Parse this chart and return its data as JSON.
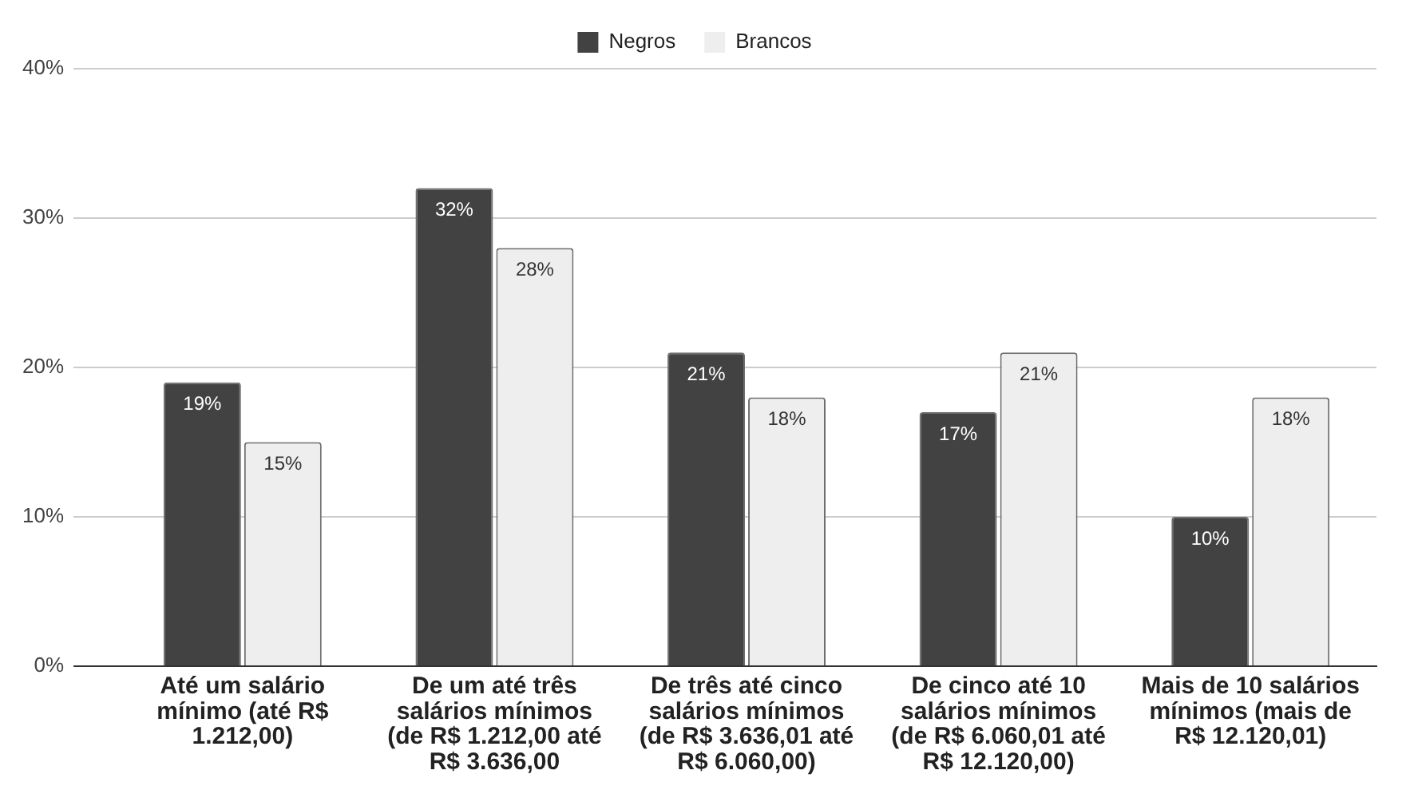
{
  "chart_data": {
    "type": "bar",
    "categories": [
      "Até um salário mínimo (até R$ 1.212,00)",
      "De um até três salários mínimos (de R$ 1.212,00 até R$ 3.636,00",
      "De três até cinco salários mínimos (de R$ 3.636,01 até R$ 6.060,00)",
      "De cinco até 10 salários mínimos (de R$ 6.060,01 até R$ 12.120,00)",
      "Mais de 10 salários mínimos (mais de R$ 12.120,01)"
    ],
    "series": [
      {
        "name": "Negros",
        "color": "#424242",
        "values": [
          19,
          32,
          21,
          17,
          10
        ],
        "value_labels": [
          "19%",
          "32%",
          "21%",
          "17%",
          "10%"
        ]
      },
      {
        "name": "Brancos",
        "color": "#eeeeee",
        "values": [
          15,
          28,
          18,
          21,
          18
        ],
        "value_labels": [
          "15%",
          "28%",
          "18%",
          "21%",
          "18%"
        ]
      }
    ],
    "ylim": [
      0,
      40
    ],
    "yticks": [
      {
        "value": 0,
        "label": "0%"
      },
      {
        "value": 10,
        "label": "10%"
      },
      {
        "value": 20,
        "label": "20%"
      },
      {
        "value": 30,
        "label": "30%"
      },
      {
        "value": 40,
        "label": "40%"
      }
    ],
    "grid": true,
    "legend": "top"
  }
}
